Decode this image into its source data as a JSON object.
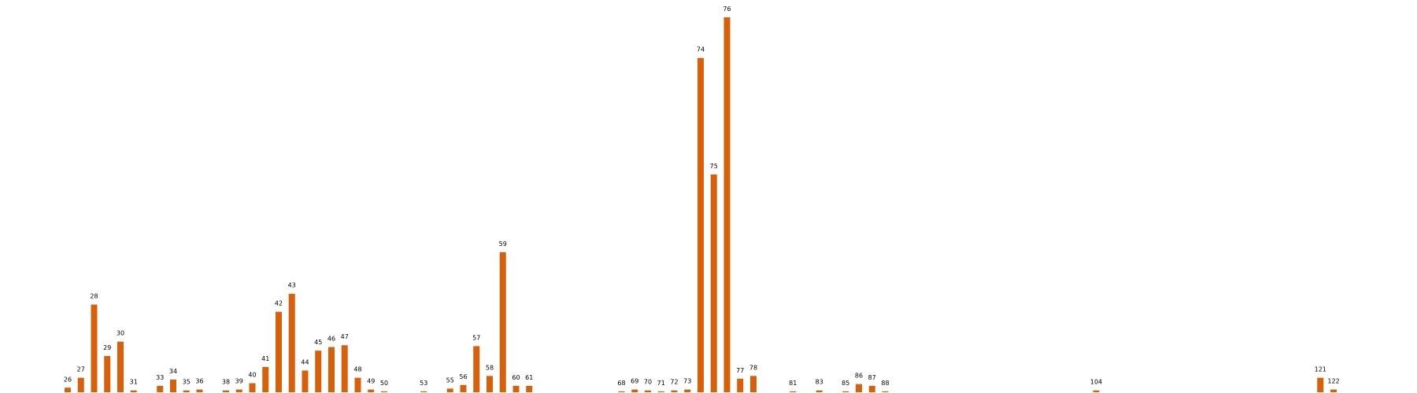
{
  "chart_data": {
    "type": "bar",
    "categories": [
      26,
      27,
      28,
      29,
      30,
      31,
      33,
      34,
      35,
      36,
      38,
      39,
      40,
      41,
      42,
      43,
      44,
      45,
      46,
      47,
      48,
      49,
      50,
      53,
      55,
      56,
      57,
      58,
      59,
      60,
      61,
      68,
      69,
      70,
      71,
      72,
      73,
      74,
      75,
      76,
      77,
      78,
      81,
      83,
      85,
      86,
      87,
      88,
      104,
      121,
      122
    ],
    "values": [
      5,
      16,
      97,
      40,
      56,
      2,
      7,
      14,
      2,
      3,
      2,
      3,
      10,
      28,
      89,
      109,
      24,
      46,
      50,
      52,
      16,
      3,
      1,
      1,
      4,
      8,
      51,
      18,
      155,
      7,
      7,
      1,
      3,
      2,
      1,
      2,
      3,
      370,
      241,
      415,
      15,
      18,
      1,
      2,
      1,
      9,
      7,
      1,
      2,
      16,
      3
    ],
    "labels": [
      "26",
      "27",
      "28",
      "29",
      "30",
      "31",
      "33",
      "34",
      "35",
      "36",
      "38",
      "39",
      "40",
      "41",
      "42",
      "43",
      "44",
      "45",
      "46",
      "47",
      "48",
      "49",
      "50",
      "53",
      "55",
      "56",
      "57",
      "58",
      "59",
      "60",
      "61",
      "68",
      "69",
      "70",
      "71",
      "72",
      "73",
      "74",
      "75",
      "76",
      "77",
      "78",
      "81",
      "83",
      "85",
      "86",
      "87",
      "88",
      "104",
      "121",
      "122"
    ],
    "title": "",
    "xlabel": "",
    "ylabel": "",
    "ylim": [
      0,
      415
    ],
    "xlim": [
      26,
      122
    ],
    "grid": false,
    "bar_color": "#d9600a"
  }
}
